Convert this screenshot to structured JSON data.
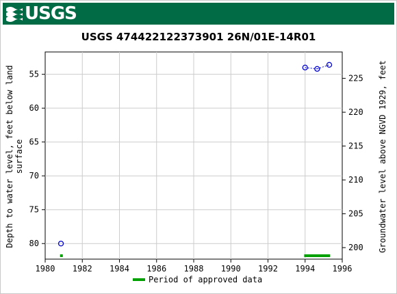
{
  "header": {
    "logo_text": "USGS",
    "logo_icon": "usgs-wave-icon",
    "brand_color": "#006b45"
  },
  "chart_data": {
    "type": "scatter",
    "title": "USGS 474422122373901 26N/01E-14R01",
    "ylabel_left": "Depth to water level, feet below land surface",
    "ylabel_left_lines": [
      "Depth to water level, feet below land",
      "surface"
    ],
    "ylabel_right": "Groundwater level above NGVD 1929, feet",
    "xlim": [
      1980,
      1996
    ],
    "ylim_left": [
      82.3,
      51.7
    ],
    "ylim_right": [
      198.3,
      228.9
    ],
    "x_ticks": [
      "1980",
      "1982",
      "1984",
      "1986",
      "1988",
      "1990",
      "1992",
      "1994",
      "1996"
    ],
    "y_ticks_left": [
      "55",
      "60",
      "65",
      "70",
      "75",
      "80"
    ],
    "y_ticks_right": [
      "225",
      "220",
      "215",
      "210",
      "205",
      "200"
    ],
    "grid": true,
    "series": [
      {
        "marker": "open-circle",
        "color": "#0000cc",
        "connector": "dotted",
        "points": [
          {
            "x": 1980.85,
            "y": 80.0
          },
          {
            "x": 1994.0,
            "y": 54.0
          },
          {
            "x": 1994.65,
            "y": 54.2
          },
          {
            "x": 1995.3,
            "y": 53.6
          }
        ]
      }
    ],
    "approved_periods": [
      {
        "start": 1980.8,
        "end": 1980.95
      },
      {
        "start": 1993.95,
        "end": 1995.35
      }
    ],
    "approved_color": "#00a000",
    "legend": {
      "label": "Period of approved data",
      "placement": "bottom-center"
    }
  }
}
